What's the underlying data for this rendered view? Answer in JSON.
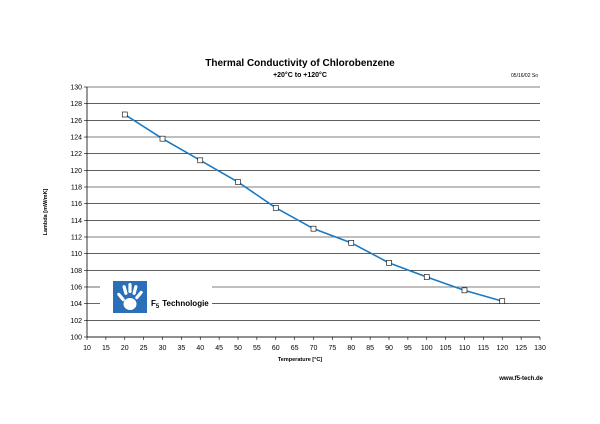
{
  "chart_data": {
    "type": "line",
    "title": "Thermal Conductivity of Chlorobenzene",
    "subtitle": "+20°C to +120°C",
    "xlabel": "Temperature [°C]",
    "ylabel": "Lambda [mW/mK]",
    "xlim": [
      10,
      130
    ],
    "ylim": [
      100,
      130
    ],
    "xticks": [
      10,
      15,
      20,
      25,
      30,
      35,
      40,
      45,
      50,
      55,
      60,
      65,
      70,
      75,
      80,
      85,
      90,
      95,
      100,
      105,
      110,
      115,
      120,
      125,
      130
    ],
    "yticks": [
      100,
      102,
      104,
      106,
      108,
      110,
      112,
      114,
      116,
      118,
      120,
      122,
      124,
      126,
      128,
      130
    ],
    "grid": "horizontal",
    "series": [
      {
        "x": [
          20,
          30,
          40,
          50,
          60,
          70,
          80,
          90,
          100,
          110,
          120
        ],
        "y": [
          126.7,
          123.8,
          121.2,
          118.6,
          115.5,
          113.0,
          111.3,
          108.9,
          107.2,
          105.6,
          104.3
        ],
        "color": "#1a7ac2",
        "marker": "square"
      }
    ]
  },
  "date_stamp": "05/16/02 So",
  "website": "www.f5-tech.de",
  "logo": {
    "icon": "hand-icon",
    "text_prefix": "F",
    "text_subscript": "5",
    "text_suffix": "Technologie",
    "bg_color": "#2a6fb8"
  }
}
